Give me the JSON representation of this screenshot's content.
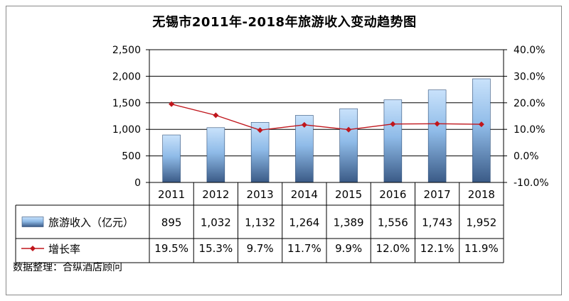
{
  "chart_data": {
    "type": "bar",
    "title": "无锡市2011年-2018年旅游收入变动趋势图",
    "categories": [
      "2011",
      "2012",
      "2013",
      "2014",
      "2015",
      "2016",
      "2017",
      "2018"
    ],
    "series": [
      {
        "name": "旅游收入（亿元）",
        "type": "bar",
        "axis": "left",
        "values": [
          895,
          1032,
          1132,
          1264,
          1389,
          1556,
          1743,
          1952
        ],
        "labels": [
          "895",
          "1,032",
          "1,132",
          "1,264",
          "1,389",
          "1,556",
          "1,743",
          "1,952"
        ]
      },
      {
        "name": "增长率",
        "type": "line",
        "axis": "right",
        "values": [
          19.5,
          15.3,
          9.7,
          11.7,
          9.9,
          12.0,
          12.1,
          11.9
        ],
        "labels": [
          "19.5%",
          "15.3%",
          "9.7%",
          "11.7%",
          "9.9%",
          "12.0%",
          "12.1%",
          "11.9%"
        ]
      }
    ],
    "y_left": {
      "range": [
        0,
        2500
      ],
      "ticks": [
        0,
        500,
        1000,
        1500,
        2000,
        2500
      ],
      "tick_labels": [
        "0",
        "500",
        "1,000",
        "1,500",
        "2,000",
        "2,500"
      ]
    },
    "y_right": {
      "range": [
        -10,
        40
      ],
      "ticks": [
        -10,
        0,
        10,
        20,
        30,
        40
      ],
      "tick_labels": [
        "-10.0%",
        "0.0%",
        "10.0%",
        "20.0%",
        "30.0%",
        "40.0%"
      ]
    },
    "grid": "horizontal",
    "legend": "data-table",
    "colors": {
      "bar_top": "#c9e2fb",
      "bar_bottom": "#3a5a86",
      "line": "#c0161c",
      "grid": "#000000"
    }
  },
  "source_note": "数据整理：合纵酒店顾问"
}
